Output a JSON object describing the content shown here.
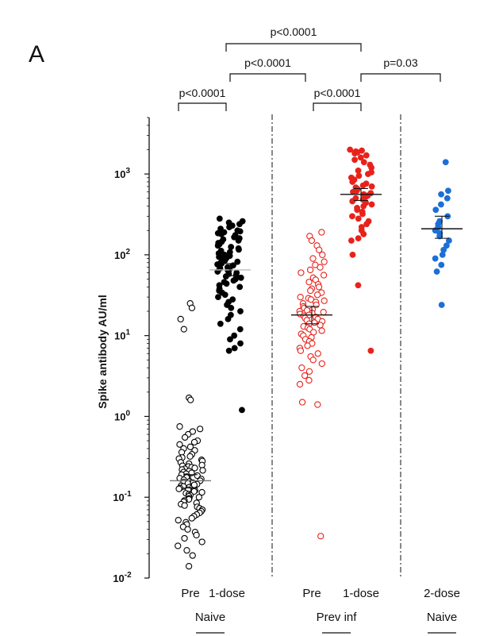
{
  "panel_label": "A",
  "chart_data": {
    "type": "scatter",
    "ylabel": "Spike antibody AU/ml",
    "yscale": "log",
    "ylim": [
      0.01,
      5000
    ],
    "yticks": [
      {
        "value": 0.01,
        "base": "10",
        "exp": "-2"
      },
      {
        "value": 0.1,
        "base": "10",
        "exp": "-1"
      },
      {
        "value": 1,
        "base": "10",
        "exp": "0"
      },
      {
        "value": 10,
        "base": "10",
        "exp": "1"
      },
      {
        "value": 100,
        "base": "10",
        "exp": "2"
      },
      {
        "value": 1000,
        "base": "10",
        "exp": "3"
      }
    ],
    "categories": [
      "Pre",
      "1-dose",
      "Pre",
      "1-dose",
      "2-dose"
    ],
    "groups": [
      {
        "label": "Naive",
        "categories": [
          0,
          1
        ]
      },
      {
        "label": "Prev inf",
        "categories": [
          2,
          3
        ]
      },
      {
        "label": "Naive",
        "categories": [
          4
        ]
      }
    ],
    "series": [
      {
        "category": "Pre",
        "group": "Naive",
        "color": "#000000",
        "marker": "open-circle",
        "center": 0.16,
        "ci": [
          0.13,
          0.19
        ],
        "values": [
          25,
          22,
          16,
          12,
          1.7,
          1.6,
          0.75,
          0.7,
          0.65,
          0.6,
          0.55,
          0.5,
          0.48,
          0.45,
          0.42,
          0.4,
          0.38,
          0.36,
          0.34,
          0.32,
          0.31,
          0.3,
          0.29,
          0.28,
          0.27,
          0.26,
          0.25,
          0.245,
          0.24,
          0.235,
          0.23,
          0.225,
          0.22,
          0.215,
          0.21,
          0.205,
          0.2,
          0.195,
          0.19,
          0.185,
          0.18,
          0.176,
          0.172,
          0.168,
          0.164,
          0.16,
          0.157,
          0.154,
          0.151,
          0.148,
          0.145,
          0.142,
          0.139,
          0.136,
          0.133,
          0.13,
          0.127,
          0.124,
          0.121,
          0.118,
          0.115,
          0.112,
          0.109,
          0.106,
          0.103,
          0.1,
          0.097,
          0.094,
          0.091,
          0.088,
          0.085,
          0.082,
          0.079,
          0.076,
          0.073,
          0.07,
          0.067,
          0.064,
          0.061,
          0.058,
          0.055,
          0.052,
          0.049,
          0.046,
          0.043,
          0.04,
          0.037,
          0.034,
          0.031,
          0.028,
          0.025,
          0.022,
          0.019,
          0.014
        ]
      },
      {
        "category": "1-dose",
        "group": "Naive",
        "color": "#000000",
        "marker": "filled-circle",
        "center": 65,
        "ci": [
          55,
          78
        ],
        "values": [
          280,
          260,
          250,
          240,
          230,
          220,
          210,
          200,
          195,
          190,
          185,
          180,
          175,
          170,
          165,
          160,
          155,
          150,
          145,
          140,
          135,
          130,
          125,
          120,
          116,
          112,
          108,
          104,
          100,
          97,
          94,
          91,
          88,
          85,
          82,
          80,
          78,
          76,
          74,
          72,
          70,
          68,
          66,
          64,
          62,
          60,
          58,
          56,
          54,
          52,
          50,
          48,
          46,
          44,
          42,
          40,
          38,
          36,
          34,
          32,
          30,
          28,
          26,
          24,
          22,
          20,
          18,
          16,
          14,
          12,
          10,
          9,
          8,
          7,
          6.5,
          1.2
        ]
      },
      {
        "category": "Pre",
        "group": "Prev inf",
        "color": "#e8221b",
        "marker": "open-circle",
        "center": 18,
        "ci": [
          14,
          23
        ],
        "values": [
          190,
          170,
          150,
          130,
          115,
          100,
          90,
          82,
          75,
          70,
          65,
          60,
          56,
          52,
          49,
          46,
          43,
          40,
          38,
          36,
          34,
          32,
          30,
          29,
          28,
          27,
          26,
          25,
          24,
          23,
          22,
          21,
          20.5,
          20,
          19.5,
          19,
          18.5,
          18,
          17.5,
          17,
          16.5,
          16,
          15.5,
          15,
          14.5,
          14,
          13.5,
          13,
          12.5,
          12,
          11.5,
          11,
          10.5,
          10,
          9.5,
          9,
          8.5,
          8,
          7.5,
          7,
          6.5,
          6,
          5.5,
          5,
          4.5,
          4,
          3.6,
          3.2,
          2.8,
          2.5,
          1.5,
          1.4,
          0.033
        ]
      },
      {
        "category": "1-dose",
        "group": "Prev inf",
        "color": "#e8221b",
        "marker": "filled-circle",
        "center": 560,
        "ci": [
          470,
          660
        ],
        "values": [
          2000,
          1950,
          1900,
          1850,
          1800,
          1700,
          1600,
          1500,
          1400,
          1300,
          1200,
          1100,
          1050,
          1000,
          950,
          900,
          850,
          800,
          760,
          720,
          700,
          680,
          650,
          620,
          600,
          580,
          560,
          540,
          520,
          500,
          480,
          460,
          440,
          420,
          400,
          380,
          360,
          340,
          320,
          300,
          280,
          260,
          240,
          220,
          200,
          180,
          160,
          150,
          100,
          42,
          6.5
        ]
      },
      {
        "category": "2-dose",
        "group": "Naive",
        "color": "#1c6fd6",
        "marker": "filled-circle",
        "center": 210,
        "ci": [
          160,
          300
        ],
        "values": [
          1400,
          620,
          560,
          500,
          420,
          360,
          300,
          260,
          240,
          220,
          200,
          185,
          170,
          150,
          130,
          115,
          100,
          90,
          75,
          62,
          24
        ]
      }
    ],
    "comparisons": [
      {
        "from": 0,
        "to": 1,
        "label": "p<0.0001"
      },
      {
        "from": 1,
        "to": 2.8,
        "label": "p<0.0001"
      },
      {
        "from": 1,
        "to": 3,
        "label": "p<0.0001"
      },
      {
        "from": 2,
        "to": 3,
        "label": "p<0.0001"
      },
      {
        "from": 3,
        "to": 4,
        "label": "p=0.03"
      }
    ]
  }
}
